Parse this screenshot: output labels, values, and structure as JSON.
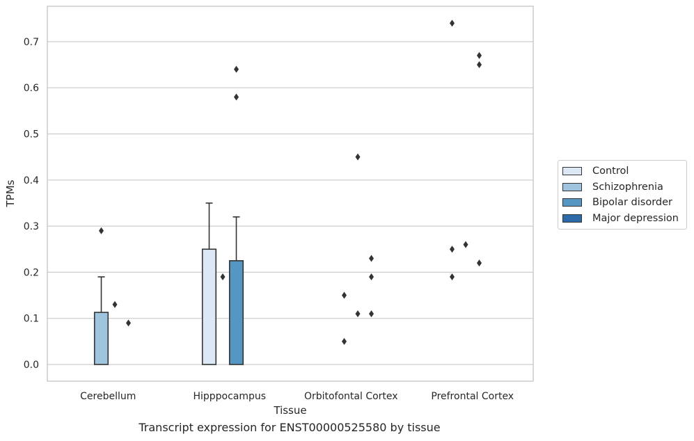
{
  "chart_data": {
    "type": "bar",
    "caption": "Transcript expression for ENST00000525580 by tissue",
    "xlabel": "Tissue",
    "ylabel": "TPMs",
    "ylim": [
      -0.035,
      0.775
    ],
    "yticks": [
      "0.0",
      "0.1",
      "0.2",
      "0.3",
      "0.4",
      "0.5",
      "0.6",
      "0.7"
    ],
    "grid": "horizontal",
    "legend_position": "right",
    "categories": [
      "Cerebellum",
      "Hipppocampus",
      "Orbitofontal Cortex",
      "Prefrontal Cortex"
    ],
    "series": [
      {
        "name": "Control",
        "color": "#dce8f5",
        "values": [
          0.0,
          0.25,
          0.0,
          0.0
        ],
        "err_upper": [
          null,
          0.35,
          null,
          null
        ],
        "outliers": [
          [],
          [],
          [],
          [
            0.74,
            0.25,
            0.19
          ]
        ]
      },
      {
        "name": "Schizophrenia",
        "color": "#9ec4de",
        "values": [
          0.113,
          0.0,
          0.0,
          0.0
        ],
        "err_upper": [
          0.19,
          null,
          null,
          null
        ],
        "outliers": [
          [
            0.29
          ],
          [
            0.19
          ],
          [
            0.15,
            0.05
          ],
          [
            0.26
          ]
        ]
      },
      {
        "name": "Bipolar disorder",
        "color": "#5596c3",
        "values": [
          0.0,
          0.225,
          0.0,
          0.0
        ],
        "err_upper": [
          null,
          0.32,
          null,
          null
        ],
        "outliers": [
          [
            0.13
          ],
          [
            0.64,
            0.58
          ],
          [
            0.45,
            0.11
          ],
          [
            0.67,
            0.65,
            0.22
          ]
        ]
      },
      {
        "name": "Major depression",
        "color": "#2c6aa8",
        "values": [
          0.0,
          0.0,
          0.0,
          0.0
        ],
        "err_upper": [
          null,
          null,
          null,
          null
        ],
        "outliers": [
          [
            0.09
          ],
          [],
          [
            0.23,
            0.19,
            0.11
          ],
          []
        ]
      }
    ]
  }
}
